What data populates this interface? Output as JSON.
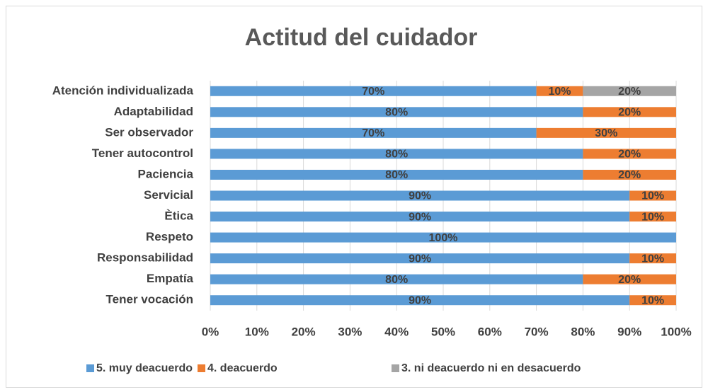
{
  "chart_data": {
    "type": "stacked-barh",
    "title": "Actitud del cuidador",
    "categories": [
      "Atención individualizada",
      "Adaptabilidad",
      "Ser observador",
      "Tener autocontrol",
      "Paciencia",
      "Servicial",
      "Ètica",
      "Respeto",
      "Responsabilidad",
      "Empatía",
      "Tener vocación"
    ],
    "series": [
      {
        "name": "5. muy deacuerdo",
        "color": "#5b9bd5",
        "values": [
          70,
          80,
          70,
          80,
          80,
          90,
          90,
          100,
          90,
          80,
          90
        ],
        "value_labels": [
          "70%",
          "80%",
          "70%",
          "80%",
          "80%",
          "90%",
          "90%",
          "100%",
          "90%",
          "80%",
          "90%"
        ]
      },
      {
        "name": "4. deacuerdo",
        "color": "#ed7d31",
        "values": [
          10,
          20,
          30,
          20,
          20,
          10,
          10,
          null,
          10,
          20,
          10
        ],
        "value_labels": [
          "10%",
          "20%",
          "30%",
          "20%",
          "20%",
          "10%",
          "10%",
          null,
          "10%",
          "20%",
          "10%"
        ]
      },
      {
        "name": "3. ni deacuerdo ni en desacuerdo",
        "color": "#a5a5a5",
        "values": [
          20,
          null,
          null,
          null,
          null,
          null,
          null,
          null,
          null,
          null,
          null
        ],
        "value_labels": [
          "20%",
          null,
          null,
          null,
          null,
          null,
          null,
          null,
          null,
          null,
          null
        ]
      }
    ],
    "xlim": [
      0,
      100
    ],
    "xticks": [
      {
        "value": 0,
        "label": "0%"
      },
      {
        "value": 10,
        "label": "10%"
      },
      {
        "value": 20,
        "label": "20%"
      },
      {
        "value": 30,
        "label": "30%"
      },
      {
        "value": 40,
        "label": "40%"
      },
      {
        "value": 50,
        "label": "50%"
      },
      {
        "value": 60,
        "label": "60%"
      },
      {
        "value": 70,
        "label": "70%"
      },
      {
        "value": 80,
        "label": "80%"
      },
      {
        "value": 90,
        "label": "90%"
      },
      {
        "value": 100,
        "label": "100%"
      }
    ],
    "grid": true,
    "legend": "bottom"
  }
}
